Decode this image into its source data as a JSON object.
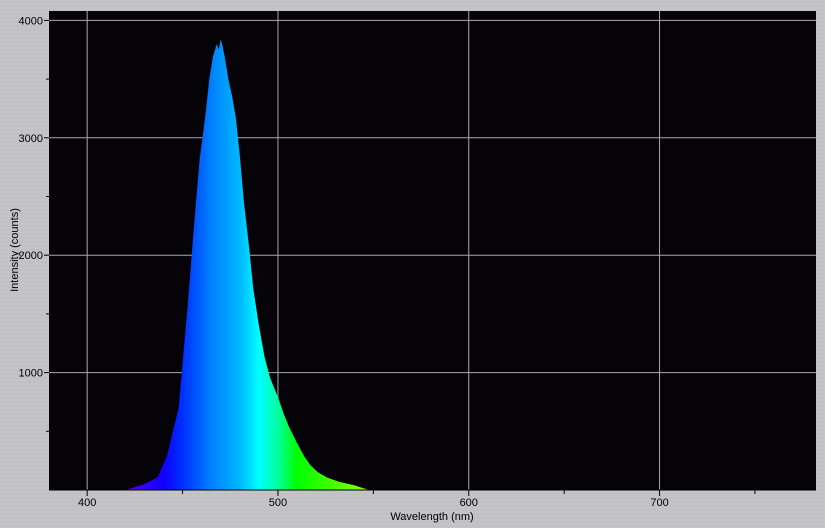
{
  "chart_data": {
    "type": "area",
    "title": "",
    "xlabel": "Wavelength (nm)",
    "ylabel": "Intensity (counts)",
    "xlim": [
      380,
      782
    ],
    "ylim": [
      0,
      4080
    ],
    "x_ticks": [
      400,
      500,
      600,
      700
    ],
    "y_ticks": [
      1000,
      2000,
      3000,
      4000
    ],
    "grid": true,
    "colors": {
      "background": "#050308",
      "grid": "#a8a8a8",
      "fill": "wavelength-colored spectrum"
    },
    "series": [
      {
        "x": [
          420,
          424,
          430,
          437,
          442,
          448,
          453,
          456,
          459,
          462,
          464,
          466,
          468,
          469,
          470,
          471,
          472,
          474,
          476,
          478,
          480,
          482,
          485,
          487,
          490,
          493,
          496,
          500,
          503,
          506,
          510,
          514,
          517,
          521,
          526,
          532,
          536,
          540,
          544,
          548
        ],
        "y": [
          0,
          20,
          50,
          110,
          300,
          700,
          1630,
          2250,
          2820,
          3200,
          3500,
          3700,
          3800,
          3750,
          3840,
          3780,
          3700,
          3500,
          3350,
          3160,
          2850,
          2480,
          2050,
          1720,
          1400,
          1130,
          950,
          790,
          650,
          530,
          400,
          280,
          210,
          150,
          105,
          70,
          55,
          40,
          20,
          0
        ]
      }
    ]
  }
}
